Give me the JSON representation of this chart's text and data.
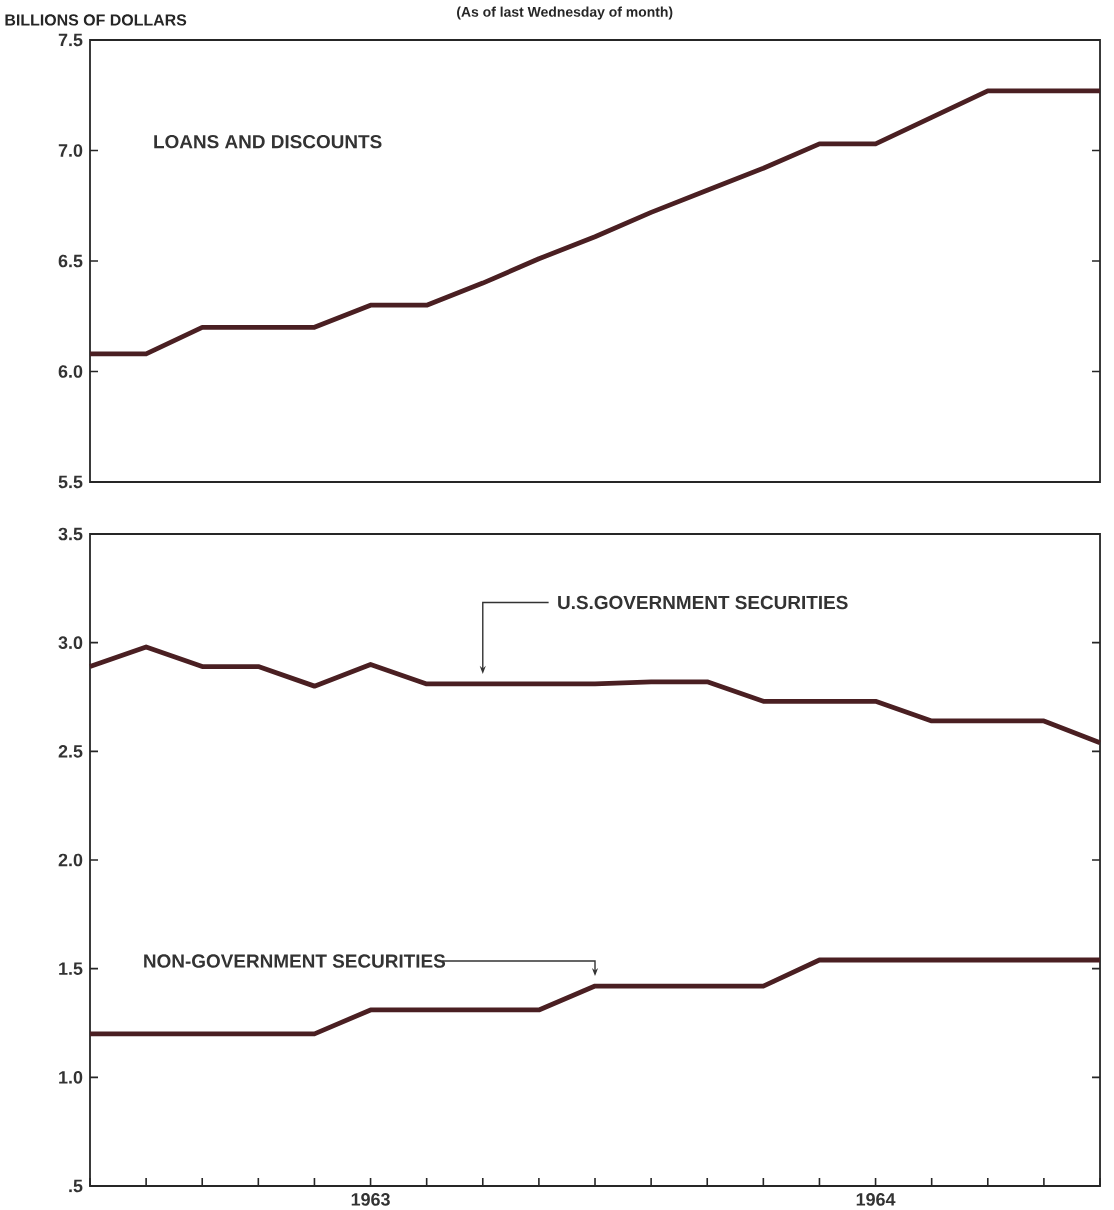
{
  "chart_data": [
    {
      "type": "line",
      "subtitle": "(As of last Wednesday of month)",
      "ylabel": "BILLIONS OF DOLLARS",
      "categories": [
        null,
        null,
        null,
        null,
        null,
        null,
        null,
        null,
        null,
        null,
        null,
        null,
        null,
        null,
        null,
        null,
        null,
        null,
        null
      ],
      "series": [
        {
          "name": "LOANS AND DISCOUNTS",
          "color": "#4a1f22",
          "values": [
            6.08,
            6.08,
            6.2,
            6.2,
            6.2,
            6.3,
            6.3,
            6.4,
            6.51,
            6.61,
            6.72,
            6.82,
            6.92,
            7.03,
            7.03,
            7.15,
            7.27,
            7.27,
            7.27
          ]
        }
      ],
      "ylim": [
        5.5,
        7.5
      ],
      "yticks": [
        5.5,
        {
          "value": 6,
          "label": "6.0"
        },
        6.5,
        {
          "value": 7,
          "label": "7.0"
        },
        7.5
      ],
      "tick_labels": "y"
    },
    {
      "type": "line",
      "categories": [
        null,
        null,
        null,
        null,
        null,
        "1963",
        null,
        null,
        null,
        null,
        null,
        null,
        null,
        null,
        "1964",
        null,
        null,
        null,
        null
      ],
      "series": [
        {
          "name": "U.S.GOVERNMENT SECURITIES",
          "color": "#4a1f22",
          "values": [
            2.89,
            2.98,
            2.89,
            2.89,
            2.8,
            2.9,
            2.81,
            2.81,
            2.81,
            2.81,
            2.82,
            2.82,
            2.73,
            2.73,
            2.73,
            2.64,
            2.64,
            2.64,
            2.54
          ]
        },
        {
          "name": "NON-GOVERNMENT SECURITIES",
          "color": "#4a1f22",
          "values": [
            1.2,
            1.2,
            1.2,
            1.2,
            1.2,
            1.31,
            1.31,
            1.31,
            1.31,
            1.42,
            1.42,
            1.42,
            1.42,
            1.54,
            1.54,
            1.54,
            1.54,
            1.54,
            1.54
          ]
        }
      ],
      "ylim": [
        0.5,
        3.5
      ],
      "yticks": [
        {
          "value": 0.5,
          "label": ".5"
        },
        {
          "value": 1,
          "label": "1.0"
        },
        1.5,
        {
          "value": 2,
          "label": "2.0"
        },
        2.5,
        {
          "value": 3,
          "label": "3.0"
        },
        3.5
      ]
    }
  ]
}
